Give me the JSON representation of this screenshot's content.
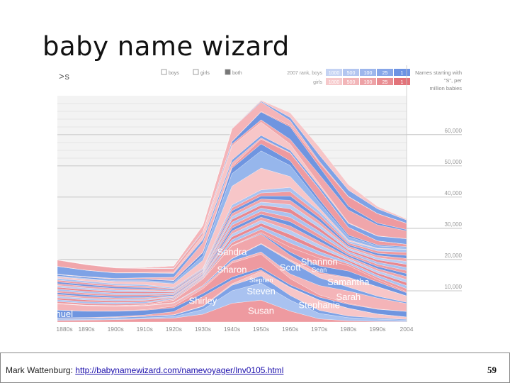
{
  "slide": {
    "title": "baby name wizard",
    "footer_prefix": "Mark Wattenburg: ",
    "footer_link": "http://babynamewizard.com/namevoyager/lnv0105.html",
    "page_number": "59"
  },
  "colors": {
    "boys": "#8fb0ea",
    "girls": "#ee9aa0",
    "background": "#ffffff"
  },
  "chart_data": {
    "type": "area",
    "query": ">s",
    "controls": [
      "boys",
      "girls",
      "both"
    ],
    "selected_control": "both",
    "rank_table": {
      "boys_label": "2007 rank, boys",
      "girls_label": "girls",
      "boys_values": [
        "1000",
        "500",
        "100",
        "25",
        "1"
      ],
      "girls_values": [
        "1000",
        "500",
        "100",
        "25",
        "1"
      ]
    },
    "ylabel": "Names starting with \"S\", per million babies",
    "x": [
      "1880s",
      "1890s",
      "1900s",
      "1910s",
      "1920s",
      "1930s",
      "1940s",
      "1950s",
      "1960s",
      "1970s",
      "1980s",
      "1990s",
      "2004"
    ],
    "y_ticks": [
      10000,
      20000,
      30000,
      40000,
      50000,
      60000
    ],
    "y_tick_labels": [
      "10,000",
      "20,000",
      "30,000",
      "40,000",
      "50,000",
      "60,000"
    ],
    "ylim": [
      0,
      72000
    ],
    "total_values": [
      20000,
      18500,
      17500,
      17500,
      18000,
      31000,
      62000,
      71000,
      67000,
      56000,
      44000,
      37000,
      33000
    ],
    "series": [
      {
        "name": "Susan",
        "gender": "girl",
        "values": [
          1000,
          1200,
          1500,
          2000,
          2500,
          5000,
          12000,
          14000,
          7000,
          2000,
          800,
          400,
          200
        ]
      },
      {
        "name": "Steven",
        "gender": "boy",
        "values": [
          500,
          500,
          600,
          700,
          1000,
          3000,
          8000,
          11000,
          7000,
          3500,
          2000,
          1500,
          1000
        ]
      },
      {
        "name": "Stephen",
        "gender": "boy",
        "values": [
          800,
          800,
          800,
          900,
          1000,
          2000,
          3500,
          4500,
          3000,
          2000,
          1000,
          700,
          500
        ]
      },
      {
        "name": "Stephanie",
        "gender": "girl",
        "values": [
          100,
          100,
          100,
          100,
          150,
          300,
          1000,
          3000,
          5000,
          6500,
          5000,
          2500,
          1500
        ]
      },
      {
        "name": "Shirley",
        "gender": "girl",
        "values": [
          200,
          300,
          400,
          800,
          2000,
          6000,
          2500,
          800,
          300,
          100,
          50,
          50,
          50
        ]
      },
      {
        "name": "Samuel",
        "gender": "boy",
        "values": [
          5000,
          4000,
          3500,
          3000,
          2500,
          2000,
          1800,
          1600,
          1500,
          1800,
          2500,
          3000,
          3500
        ]
      },
      {
        "name": "Sharon",
        "gender": "girl",
        "values": [
          100,
          100,
          200,
          400,
          1000,
          3000,
          9000,
          8500,
          4000,
          1500,
          500,
          200,
          100
        ]
      },
      {
        "name": "Sarah",
        "gender": "girl",
        "values": [
          4000,
          3500,
          3000,
          2500,
          2000,
          1500,
          1200,
          1500,
          3000,
          6000,
          8000,
          7000,
          5000
        ]
      },
      {
        "name": "Scott",
        "gender": "boy",
        "values": [
          100,
          100,
          100,
          100,
          200,
          500,
          1500,
          5000,
          8000,
          5000,
          2500,
          1200,
          800
        ]
      },
      {
        "name": "Samantha",
        "gender": "girl",
        "values": [
          100,
          100,
          100,
          100,
          100,
          100,
          200,
          400,
          1000,
          2500,
          6000,
          6000,
          4000
        ]
      },
      {
        "name": "Sandra",
        "gender": "girl",
        "values": [
          100,
          100,
          200,
          500,
          1500,
          4000,
          8000,
          6000,
          3000,
          1000,
          300,
          100,
          100
        ]
      },
      {
        "name": "Sean",
        "gender": "boy",
        "values": [
          0,
          0,
          0,
          0,
          0,
          50,
          100,
          500,
          2000,
          4000,
          4000,
          3000,
          2000
        ]
      },
      {
        "name": "Shannon",
        "gender": "girl",
        "values": [
          0,
          0,
          0,
          0,
          50,
          100,
          200,
          600,
          3000,
          5000,
          3500,
          1500,
          700
        ]
      }
    ],
    "grid": true,
    "legend": "none"
  }
}
